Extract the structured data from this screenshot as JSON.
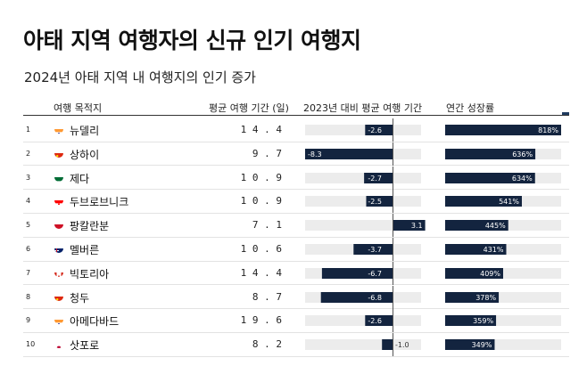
{
  "title": "아태 지역 여행자의 신규 인기 여행지",
  "subtitle": "2024년 아태 지역 내 여행지의 인기 증가",
  "headers": {
    "destination": "여행 목적지",
    "stay": "평균 여행 기간 (일)",
    "change": "2023년 대비 평균 여행 기간",
    "growth": "연간 성장률"
  },
  "colors": {
    "bar": "#13243f",
    "track": "#ececec",
    "text_on_bar": "#ffffff"
  },
  "chart_data": {
    "type": "table",
    "title": "아태 지역 여행자의 신규 인기 여행지",
    "subtitle": "2024년 아태 지역 내 여행지의 인기 증가",
    "rows": [
      {
        "rank": "1",
        "flag": "india-flag",
        "city": "뉴델리",
        "stay": "14.4",
        "change": -2.6,
        "change_label": "-2.6",
        "growth": 818,
        "growth_label": "818%"
      },
      {
        "rank": "2",
        "flag": "china-flag",
        "city": "상하이",
        "stay": "9.7",
        "change": -8.3,
        "change_label": "-8.3",
        "growth": 636,
        "growth_label": "636%"
      },
      {
        "rank": "3",
        "flag": "saudi-flag",
        "city": "제다",
        "stay": "10.9",
        "change": -2.7,
        "change_label": "-2.7",
        "growth": 634,
        "growth_label": "634%"
      },
      {
        "rank": "4",
        "flag": "croatia-flag",
        "city": "두브로브니크",
        "stay": "10.9",
        "change": -2.5,
        "change_label": "-2.5",
        "growth": 541,
        "growth_label": "541%"
      },
      {
        "rank": "5",
        "flag": "indonesia-flag",
        "city": "팡칼란분",
        "stay": "7.1",
        "change": 3.1,
        "change_label": "3.1",
        "growth": 445,
        "growth_label": "445%"
      },
      {
        "rank": "6",
        "flag": "australia-flag",
        "city": "멜버른",
        "stay": "10.6",
        "change": -3.7,
        "change_label": "-3.7",
        "growth": 431,
        "growth_label": "431%"
      },
      {
        "rank": "7",
        "flag": "canada-flag",
        "city": "빅토리아",
        "stay": "14.4",
        "change": -6.7,
        "change_label": "-6.7",
        "growth": 409,
        "growth_label": "409%"
      },
      {
        "rank": "8",
        "flag": "china-flag",
        "city": "청두",
        "stay": "8.7",
        "change": -6.8,
        "change_label": "-6.8",
        "growth": 378,
        "growth_label": "378%"
      },
      {
        "rank": "9",
        "flag": "netherlands-flag",
        "city": "아메다바드",
        "stay": "19.6",
        "change": -2.6,
        "change_label": "-2.6",
        "growth": 359,
        "growth_label": "359%"
      },
      {
        "rank": "10",
        "flag": "japan-flag",
        "city": "삿포로",
        "stay": "8.2",
        "change": -1.0,
        "change_label": "-1.0",
        "growth": 349,
        "growth_label": "349%"
      }
    ],
    "change_range": [
      -8.3,
      3.1
    ],
    "growth_range": [
      0,
      818
    ]
  }
}
